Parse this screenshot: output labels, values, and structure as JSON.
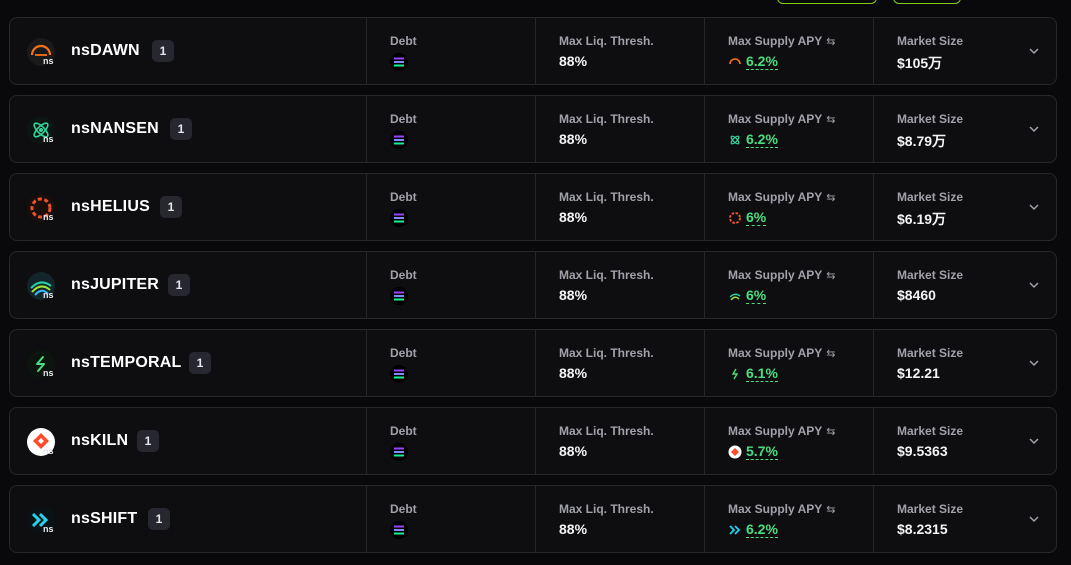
{
  "columns": {
    "debt_label": "Debt",
    "liq_label": "Max Liq. Thresh.",
    "apy_label": "Max Supply APY",
    "market_label": "Market Size"
  },
  "icons": {
    "swap": "swap-arrows-icon",
    "expand": "chevron-down-icon",
    "debt": "solana-icon"
  },
  "colors": {
    "apy": "#4ade80",
    "background": "#09090b",
    "row_border": "#26262b"
  },
  "rows": [
    {
      "name": "nsDAWN",
      "badge": "1",
      "ns": "ns",
      "liq": "88%",
      "apy": "6.2%",
      "market": "$105万",
      "icon": "dawn-icon"
    },
    {
      "name": "nsNANSEN",
      "badge": "1",
      "ns": "ns",
      "liq": "88%",
      "apy": "6.2%",
      "market": "$8.79万",
      "icon": "nansen-icon"
    },
    {
      "name": "nsHELIUS",
      "badge": "1",
      "ns": "ns",
      "liq": "88%",
      "apy": "6%",
      "market": "$6.19万",
      "icon": "helius-icon"
    },
    {
      "name": "nsJUPITER",
      "badge": "1",
      "ns": "ns",
      "liq": "88%",
      "apy": "6%",
      "market": "$8460",
      "icon": "jupiter-icon"
    },
    {
      "name": "nsTEMPORAL",
      "badge": "1",
      "ns": "ns",
      "liq": "88%",
      "apy": "6.1%",
      "market": "$12.21",
      "icon": "temporal-icon"
    },
    {
      "name": "nsKILN",
      "badge": "1",
      "ns": "ns",
      "liq": "88%",
      "apy": "5.7%",
      "market": "$9.5363",
      "icon": "kiln-icon"
    },
    {
      "name": "nsSHIFT",
      "badge": "1",
      "ns": "ns",
      "liq": "88%",
      "apy": "6.2%",
      "market": "$8.2315",
      "icon": "shift-icon"
    }
  ]
}
